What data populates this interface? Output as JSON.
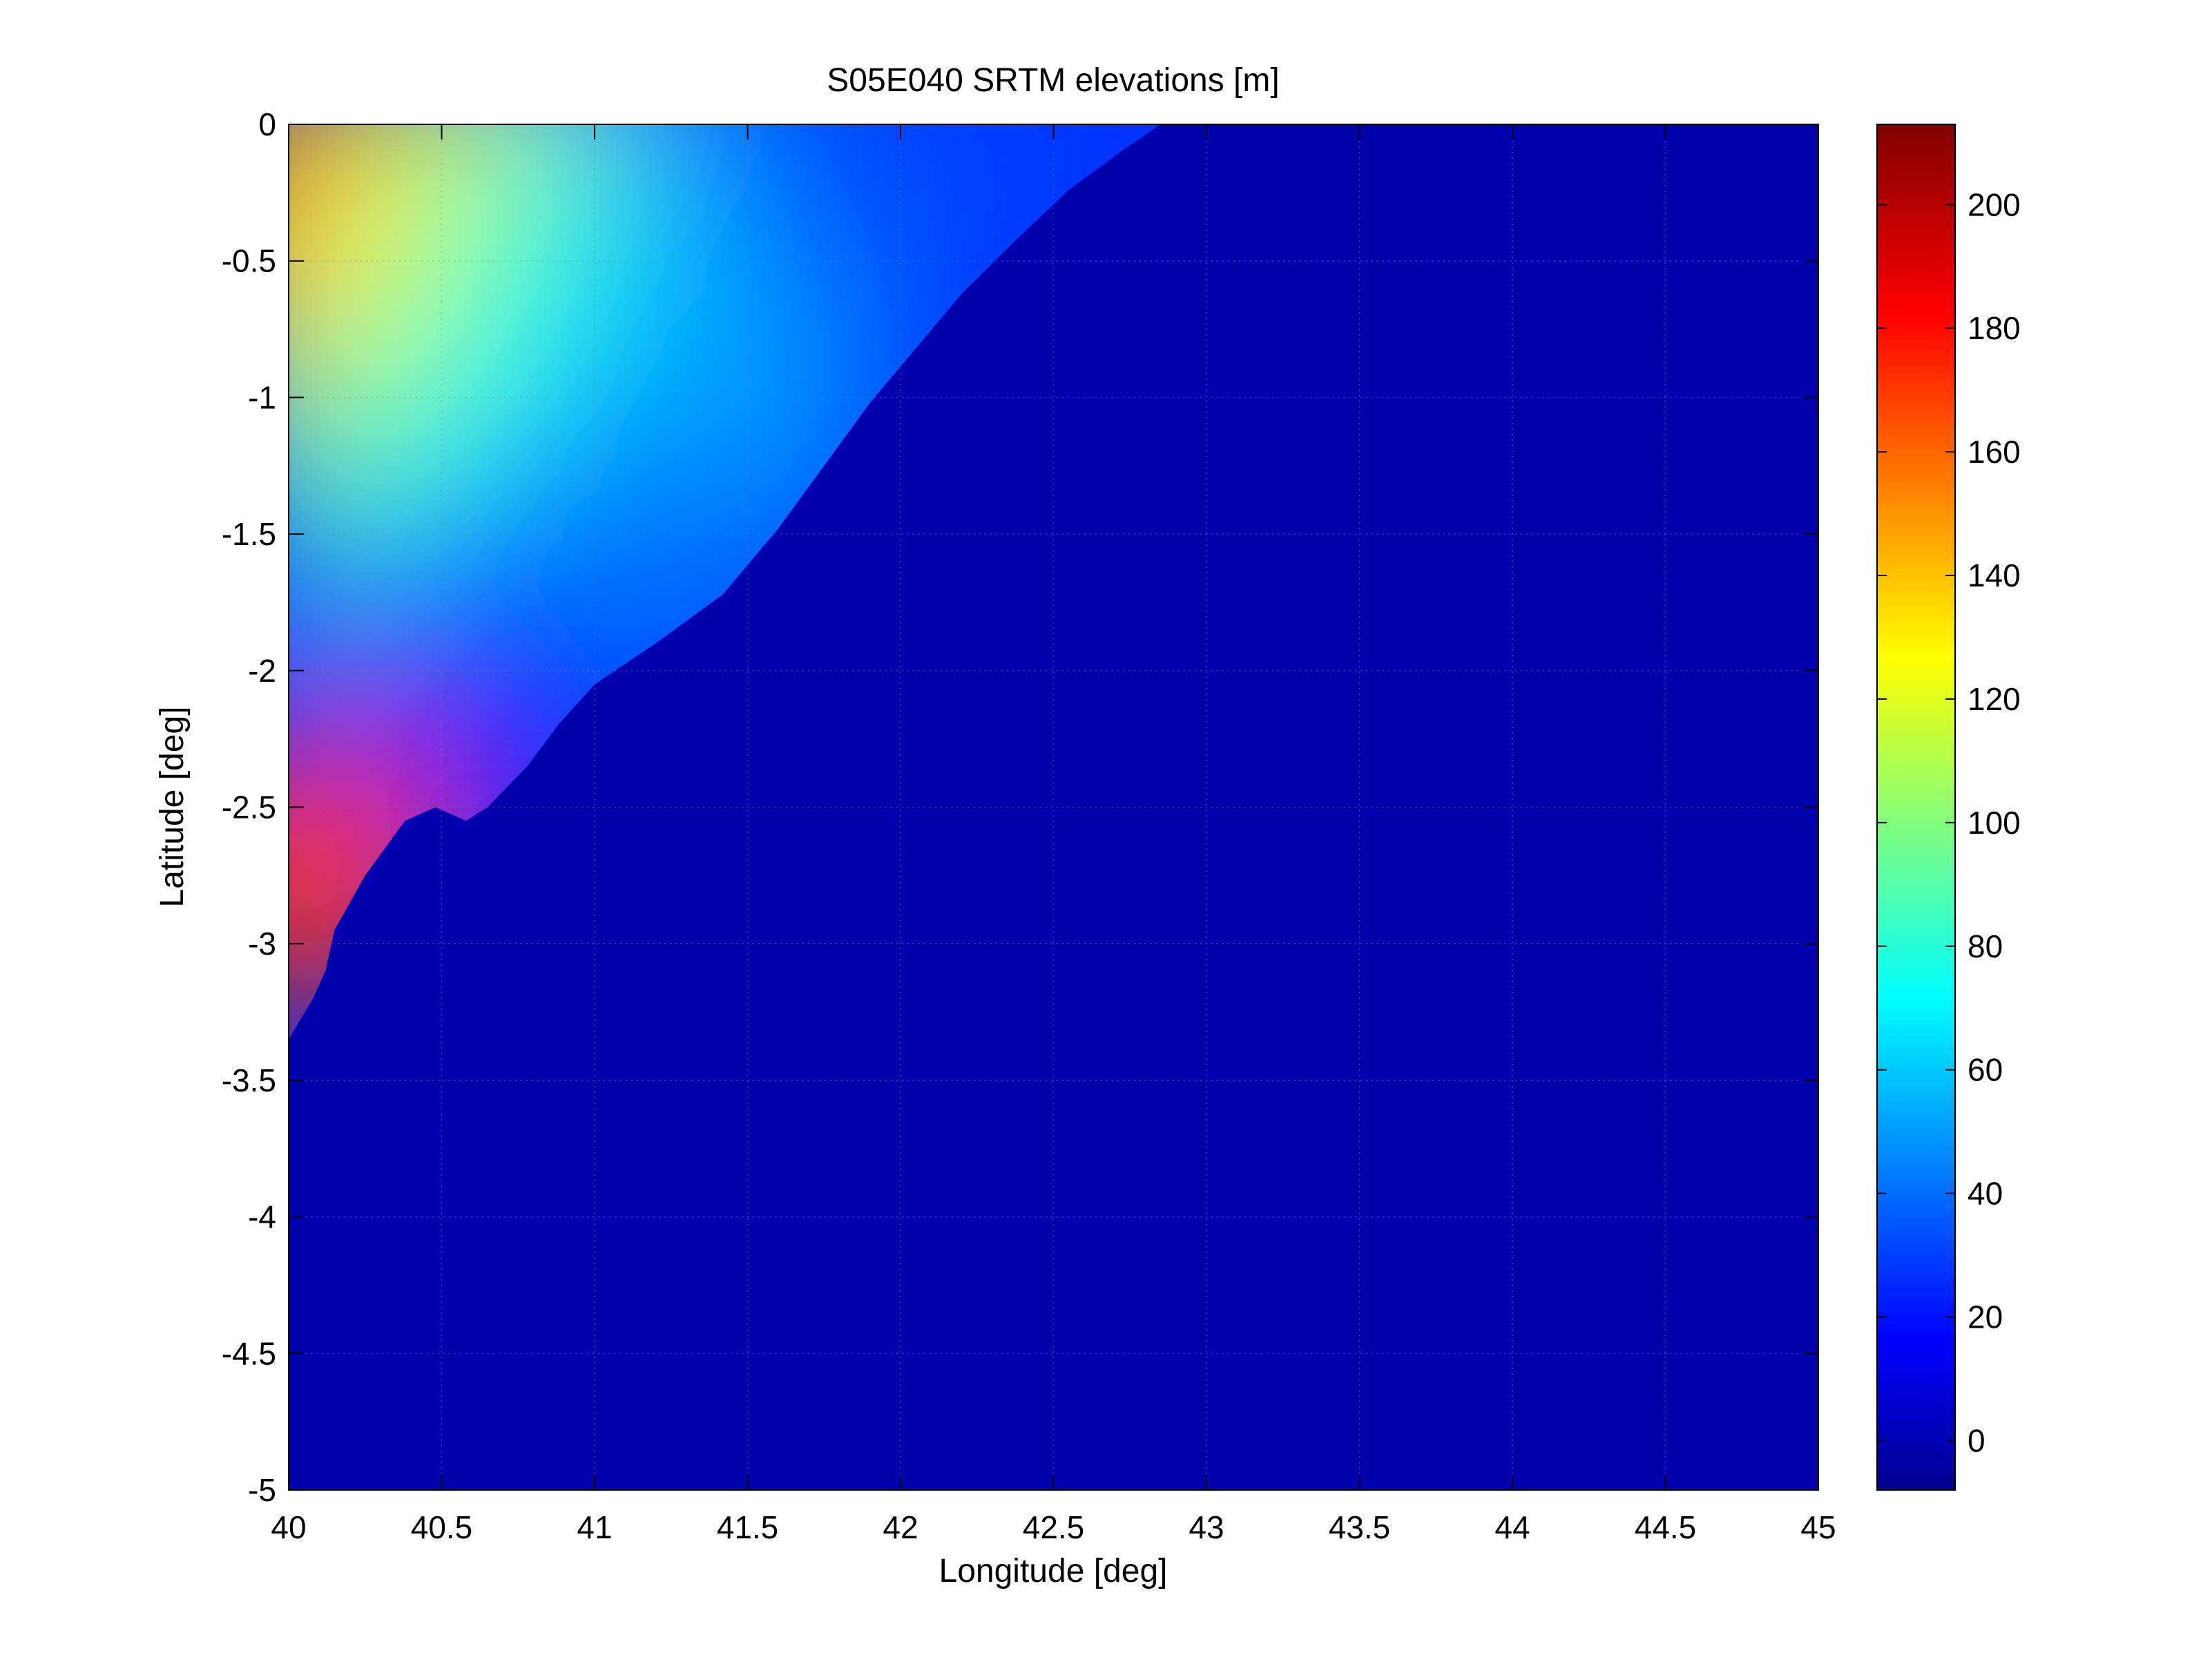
{
  "chart_data": {
    "type": "heatmap",
    "title": "S05E040 SRTM elevations [m]",
    "xlabel": "Longitude [deg]",
    "ylabel": "Latitude [deg]",
    "xlim": [
      40,
      45
    ],
    "ylim": [
      -5,
      0
    ],
    "x_ticks": [
      40,
      40.5,
      41,
      41.5,
      42,
      42.5,
      43,
      43.5,
      44,
      44.5,
      45
    ],
    "x_tick_labels": [
      "40",
      "40.5",
      "41",
      "41.5",
      "42",
      "42.5",
      "43",
      "43.5",
      "44",
      "44.5",
      "45"
    ],
    "y_ticks": [
      0,
      -0.5,
      -1,
      -1.5,
      -2,
      -2.5,
      -3,
      -3.5,
      -4,
      -4.5,
      -5
    ],
    "y_tick_labels": [
      "0",
      "-0.5",
      "-1",
      "-1.5",
      "-2",
      "-2.5",
      "-3",
      "-3.5",
      "-4",
      "-4.5",
      "-5"
    ],
    "grid": true,
    "colormap": "jet",
    "colorbar": {
      "range": [
        -8,
        213
      ],
      "ticks": [
        0,
        20,
        40,
        60,
        80,
        100,
        120,
        140,
        160,
        180,
        200
      ],
      "tick_labels": [
        "0",
        "20",
        "40",
        "60",
        "80",
        "100",
        "120",
        "140",
        "160",
        "180",
        "200"
      ]
    },
    "background_value": 0,
    "coastline": [
      [
        42.85,
        0.0
      ],
      [
        42.72,
        -0.1
      ],
      [
        42.55,
        -0.24
      ],
      [
        42.38,
        -0.42
      ],
      [
        42.2,
        -0.62
      ],
      [
        42.05,
        -0.82
      ],
      [
        41.9,
        -1.02
      ],
      [
        41.75,
        -1.25
      ],
      [
        41.6,
        -1.48
      ],
      [
        41.42,
        -1.72
      ],
      [
        41.2,
        -1.9
      ],
      [
        41.0,
        -2.05
      ],
      [
        40.88,
        -2.2
      ],
      [
        40.78,
        -2.35
      ],
      [
        40.65,
        -2.5
      ],
      [
        40.58,
        -2.55
      ],
      [
        40.48,
        -2.5
      ],
      [
        40.38,
        -2.55
      ],
      [
        40.25,
        -2.75
      ],
      [
        40.15,
        -2.95
      ],
      [
        40.12,
        -3.1
      ],
      [
        40.08,
        -3.2
      ],
      [
        40.0,
        -3.35
      ]
    ],
    "elevation_regions": [
      {
        "lon": 40.12,
        "lat": -0.25,
        "value": 165
      },
      {
        "lon": 40.45,
        "lat": -0.3,
        "value": 145
      },
      {
        "lon": 40.7,
        "lat": -0.2,
        "value": 125
      },
      {
        "lon": 40.25,
        "lat": -0.75,
        "value": 135
      },
      {
        "lon": 40.8,
        "lat": -0.5,
        "value": 110
      },
      {
        "lon": 41.1,
        "lat": -0.3,
        "value": 85
      },
      {
        "lon": 41.5,
        "lat": -0.4,
        "value": 55
      },
      {
        "lon": 42.0,
        "lat": -0.2,
        "value": 35
      },
      {
        "lon": 40.35,
        "lat": -1.3,
        "value": 95
      },
      {
        "lon": 40.9,
        "lat": -1.0,
        "value": 80
      },
      {
        "lon": 41.4,
        "lat": -1.1,
        "value": 55
      },
      {
        "lon": 40.6,
        "lat": -1.8,
        "value": 60
      },
      {
        "lon": 41.1,
        "lat": -1.6,
        "value": 45
      },
      {
        "lon": 40.5,
        "lat": -2.2,
        "value": 25
      },
      {
        "lon": 40.05,
        "lat": -2.75,
        "value": 175
      }
    ]
  }
}
